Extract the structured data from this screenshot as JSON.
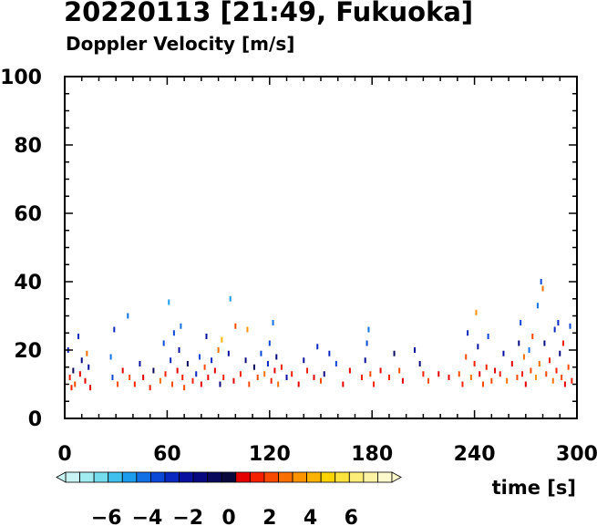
{
  "header": {
    "title": "20220113 [21:49, Fukuoka]",
    "subtitle": "Doppler Velocity [m/s]"
  },
  "chart_data": {
    "type": "scatter",
    "title": "20220113 [21:49, Fukuoka]",
    "subtitle": "Doppler Velocity [m/s]",
    "xlabel": "time [s]",
    "ylabel": "",
    "xlim": [
      0,
      300
    ],
    "ylim": [
      0,
      100
    ],
    "x_ticks": [
      0,
      60,
      120,
      180,
      240,
      300
    ],
    "y_ticks": [
      0,
      20,
      40,
      60,
      80,
      100
    ],
    "grid": false,
    "colorbar": {
      "label": "Doppler Velocity [m/s]",
      "range": [
        -8,
        8
      ],
      "tick_labels": [
        "−6",
        "−4",
        "−2",
        "0",
        "2",
        "4",
        "6"
      ],
      "tick_values": [
        -6,
        -4,
        -2,
        0,
        2,
        4,
        6
      ],
      "colors": [
        "#c8f4f4",
        "#a0ecf0",
        "#74dcec",
        "#40c0ec",
        "#1c9cec",
        "#1070e4",
        "#0c48d8",
        "#0828c0",
        "#0810a0",
        "#080880",
        "#08085c",
        "#08083c",
        "#e40000",
        "#f42000",
        "#f84a00",
        "#fa7000",
        "#fc9400",
        "#fcb400",
        "#fcd200",
        "#fce23c",
        "#fcec78",
        "#fcf4a4",
        "#fcfacc"
      ]
    },
    "points": [
      [
        2,
        20,
        -2.5
      ],
      [
        3,
        12,
        1.5
      ],
      [
        4,
        9,
        1.2
      ],
      [
        5,
        14,
        -0.5
      ],
      [
        6,
        10,
        2.0
      ],
      [
        8,
        24,
        -3.0
      ],
      [
        9,
        13,
        0.8
      ],
      [
        10,
        17,
        -1.5
      ],
      [
        12,
        11,
        1.0
      ],
      [
        13,
        19,
        2.5
      ],
      [
        14,
        15,
        -2.0
      ],
      [
        15,
        9,
        0.6
      ],
      [
        27,
        18,
        -4.0
      ],
      [
        28,
        12,
        -3.5
      ],
      [
        29,
        26,
        -3.0
      ],
      [
        31,
        10,
        1.8
      ],
      [
        34,
        14,
        0.9
      ],
      [
        37,
        30,
        -4.5
      ],
      [
        38,
        12,
        2.2
      ],
      [
        41,
        10,
        1.4
      ],
      [
        44,
        16,
        -2.2
      ],
      [
        46,
        12,
        0.7
      ],
      [
        50,
        9,
        1.6
      ],
      [
        52,
        14,
        -1.0
      ],
      [
        56,
        11,
        2.8
      ],
      [
        58,
        22,
        -3.5
      ],
      [
        59,
        13,
        1.1
      ],
      [
        61,
        34,
        -5.0
      ],
      [
        62,
        17,
        -2.8
      ],
      [
        63,
        10,
        1.9
      ],
      [
        64,
        25,
        -3.2
      ],
      [
        66,
        14,
        0.9
      ],
      [
        67,
        20,
        -1.8
      ],
      [
        68,
        27,
        -4.2
      ],
      [
        69,
        12,
        1.3
      ],
      [
        70,
        9,
        2.0
      ],
      [
        72,
        16,
        -0.7
      ],
      [
        75,
        11,
        1.5
      ],
      [
        77,
        13,
        -2.5
      ],
      [
        79,
        18,
        -3.8
      ],
      [
        80,
        10,
        0.8
      ],
      [
        82,
        15,
        2.4
      ],
      [
        83,
        24,
        -2.0
      ],
      [
        84,
        12,
        1.0
      ],
      [
        86,
        17,
        -3.0
      ],
      [
        88,
        14,
        0.6
      ],
      [
        90,
        20,
        3.0
      ],
      [
        91,
        10,
        -1.5
      ],
      [
        92,
        23,
        4.5
      ],
      [
        93,
        12,
        1.2
      ],
      [
        96,
        19,
        -2.2
      ],
      [
        97,
        35,
        -4.8
      ],
      [
        99,
        11,
        0.7
      ],
      [
        100,
        27,
        2.2
      ],
      [
        103,
        13,
        1.6
      ],
      [
        106,
        17,
        -1.2
      ],
      [
        107,
        26,
        3.4
      ],
      [
        108,
        10,
        2.1
      ],
      [
        111,
        15,
        -0.8
      ],
      [
        113,
        12,
        1.8
      ],
      [
        115,
        19,
        -3.6
      ],
      [
        117,
        13,
        2.5
      ],
      [
        119,
        16,
        -2.6
      ],
      [
        120,
        22,
        -3.2
      ],
      [
        121,
        11,
        1.4
      ],
      [
        122,
        28,
        -4.0
      ],
      [
        123,
        14,
        0.9
      ],
      [
        124,
        18,
        -1.7
      ],
      [
        125,
        10,
        2.6
      ],
      [
        127,
        15,
        1.1
      ],
      [
        130,
        12,
        -2.3
      ],
      [
        133,
        13,
        1.3
      ],
      [
        137,
        10,
        0.8
      ],
      [
        140,
        17,
        -2.0
      ],
      [
        142,
        14,
        1.7
      ],
      [
        146,
        12,
        0.7
      ],
      [
        148,
        21,
        -3.0
      ],
      [
        150,
        11,
        1.9
      ],
      [
        152,
        13,
        -1.1
      ],
      [
        155,
        19,
        -2.6
      ],
      [
        159,
        16,
        -3.3
      ],
      [
        163,
        10,
        1.0
      ],
      [
        167,
        14,
        0.6
      ],
      [
        174,
        12,
        1.3
      ],
      [
        176,
        17,
        -2.0
      ],
      [
        177,
        22,
        -3.4
      ],
      [
        178,
        26,
        -4.2
      ],
      [
        179,
        13,
        2.4
      ],
      [
        181,
        10,
        1.5
      ],
      [
        185,
        14,
        0.8
      ],
      [
        190,
        12,
        1.2
      ],
      [
        193,
        19,
        -1.0
      ],
      [
        196,
        14,
        2.0
      ],
      [
        198,
        11,
        0.7
      ],
      [
        205,
        20,
        -2.1
      ],
      [
        208,
        16,
        -1.5
      ],
      [
        210,
        13,
        1.2
      ],
      [
        213,
        11,
        2.1
      ],
      [
        219,
        13,
        1.0
      ],
      [
        225,
        12,
        0.8
      ],
      [
        231,
        13,
        2.3
      ],
      [
        233,
        10,
        1.2
      ],
      [
        235,
        18,
        1.9
      ],
      [
        236,
        25,
        -3.0
      ],
      [
        238,
        12,
        2.7
      ],
      [
        240,
        16,
        1.4
      ],
      [
        241,
        31,
        3.2
      ],
      [
        242,
        21,
        -2.4
      ],
      [
        243,
        13,
        0.7
      ],
      [
        245,
        10,
        2.2
      ],
      [
        247,
        15,
        1.4
      ],
      [
        248,
        24,
        -3.4
      ],
      [
        250,
        11,
        1.9
      ],
      [
        252,
        14,
        0.8
      ],
      [
        255,
        13,
        1.6
      ],
      [
        257,
        19,
        -2.3
      ],
      [
        259,
        11,
        2.5
      ],
      [
        262,
        16,
        1.0
      ],
      [
        265,
        12,
        2.0
      ],
      [
        266,
        22,
        -1.2
      ],
      [
        267,
        28,
        -3.5
      ],
      [
        268,
        13,
        1.7
      ],
      [
        269,
        18,
        2.7
      ],
      [
        270,
        10,
        0.9
      ],
      [
        272,
        20,
        -4.0
      ],
      [
        273,
        14,
        2.3
      ],
      [
        274,
        24,
        1.8
      ],
      [
        276,
        12,
        3.2
      ],
      [
        277,
        33,
        -4.5
      ],
      [
        278,
        16,
        2.6
      ],
      [
        279,
        40,
        -3.2
      ],
      [
        280,
        38,
        2.8
      ],
      [
        281,
        22,
        -1.6
      ],
      [
        282,
        13,
        2.2
      ],
      [
        284,
        17,
        1.4
      ],
      [
        286,
        11,
        2.9
      ],
      [
        287,
        26,
        -2.7
      ],
      [
        288,
        14,
        1.1
      ],
      [
        289,
        28,
        -3.1
      ],
      [
        290,
        19,
        -1.4
      ],
      [
        291,
        12,
        2.1
      ],
      [
        292,
        22,
        1.6
      ],
      [
        293,
        10,
        0.8
      ],
      [
        295,
        15,
        1.9
      ],
      [
        296,
        27,
        -3.8
      ],
      [
        297,
        11,
        1.2
      ]
    ]
  }
}
